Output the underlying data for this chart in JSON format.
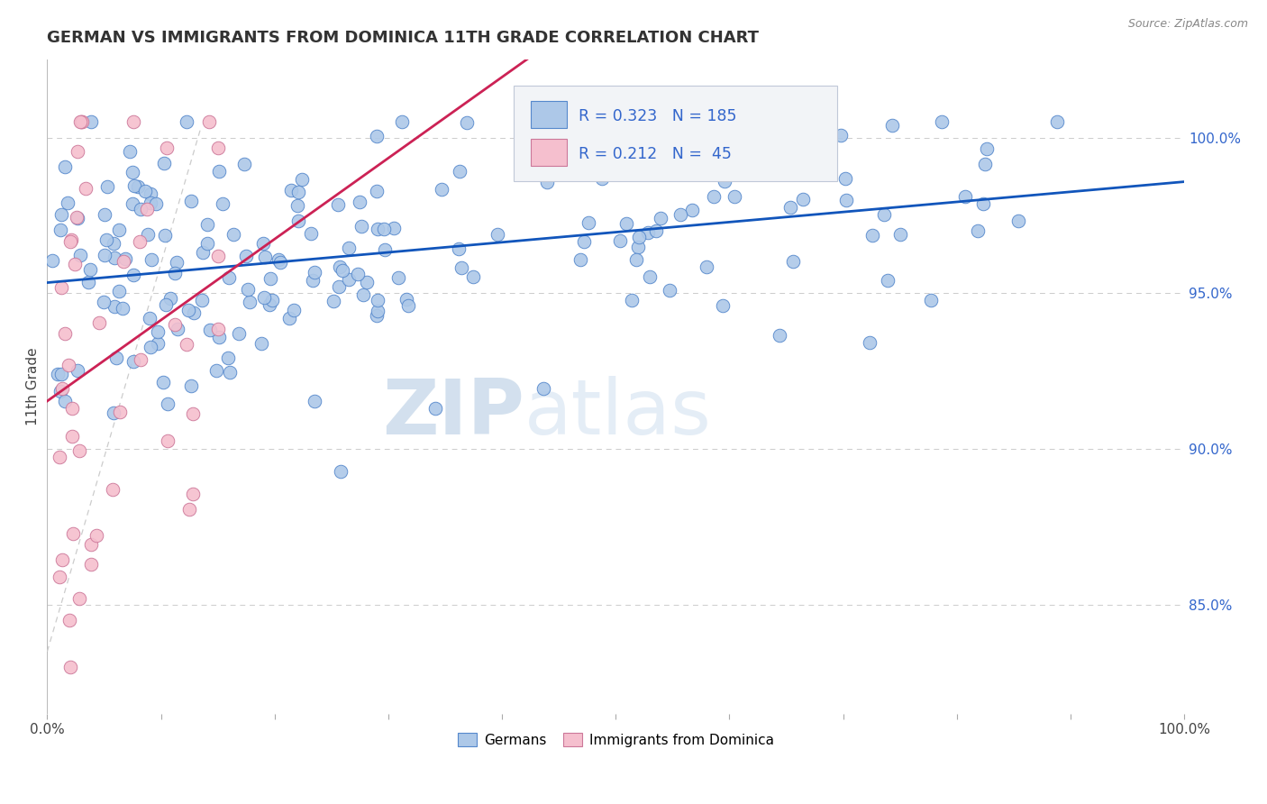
{
  "title": "GERMAN VS IMMIGRANTS FROM DOMINICA 11TH GRADE CORRELATION CHART",
  "source": "Source: ZipAtlas.com",
  "ylabel": "11th Grade",
  "blue_R": 0.323,
  "blue_N": 185,
  "pink_R": 0.212,
  "pink_N": 45,
  "blue_color": "#adc8e8",
  "blue_edge": "#5588cc",
  "pink_color": "#f5bfce",
  "pink_edge": "#cc7799",
  "blue_line_color": "#1155bb",
  "pink_line_color": "#cc2255",
  "ref_line_color": "#cccccc",
  "legend_R_color": "#3366cc",
  "background_color": "#ffffff",
  "grid_color": "#cccccc",
  "watermark_zip": "ZIP",
  "watermark_atlas": "atlas",
  "watermark_color_zip": "#b8cfe8",
  "watermark_color_atlas": "#c8d8e8",
  "legend_label_blue": "Germans",
  "legend_label_pink": "Immigrants from Dominica",
  "title_fontsize": 13,
  "figsize": [
    14.06,
    8.92
  ],
  "dpi": 100,
  "ylim_low": 0.815,
  "ylim_high": 1.025,
  "y_ticks": [
    0.85,
    0.9,
    0.95,
    1.0
  ],
  "y_tick_labels": [
    "85.0%",
    "90.0%",
    "95.0%",
    "100.0%"
  ]
}
